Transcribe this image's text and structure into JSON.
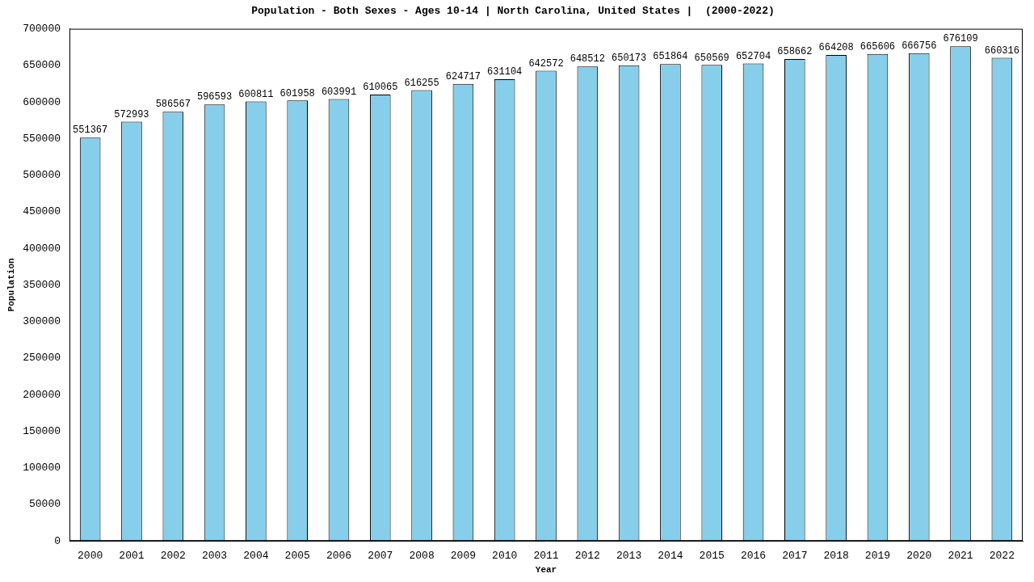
{
  "chart_data": {
    "type": "bar",
    "title": "Population - Both Sexes - Ages 10-14 | North Carolina, United States |  (2000-2022)",
    "x_label": "Year",
    "y_label": "Population",
    "categories": [
      "2000",
      "2001",
      "2002",
      "2003",
      "2004",
      "2005",
      "2006",
      "2007",
      "2008",
      "2009",
      "2010",
      "2011",
      "2012",
      "2013",
      "2014",
      "2015",
      "2016",
      "2017",
      "2018",
      "2019",
      "2020",
      "2021",
      "2022"
    ],
    "values": [
      551367,
      572993,
      586567,
      596593,
      600811,
      601958,
      603991,
      610065,
      616255,
      624717,
      631104,
      642572,
      648512,
      650173,
      651864,
      650569,
      652704,
      658662,
      664208,
      665606,
      666756,
      676109,
      660316
    ],
    "color": "#87ceeb",
    "ylim": [
      0,
      700000
    ],
    "yticks": [
      0,
      50000,
      100000,
      150000,
      200000,
      250000,
      300000,
      350000,
      400000,
      450000,
      500000,
      550000,
      600000,
      650000,
      700000
    ],
    "grid": false,
    "data_labels": true
  }
}
